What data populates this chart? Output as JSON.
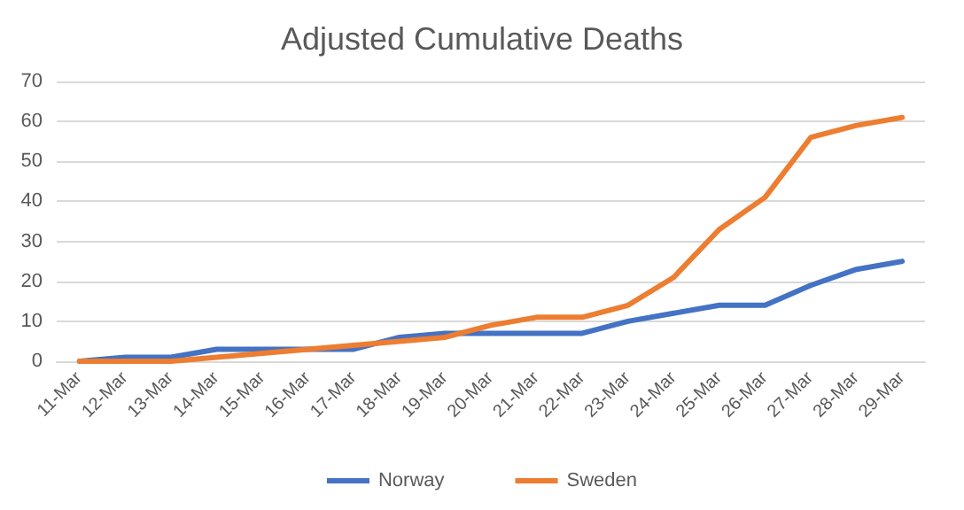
{
  "chart_data": {
    "type": "line",
    "title": "Adjusted Cumulative Deaths",
    "categories": [
      "11-Mar",
      "12-Mar",
      "13-Mar",
      "14-Mar",
      "15-Mar",
      "16-Mar",
      "17-Mar",
      "18-Mar",
      "19-Mar",
      "20-Mar",
      "21-Mar",
      "22-Mar",
      "23-Mar",
      "24-Mar",
      "25-Mar",
      "26-Mar",
      "27-Mar",
      "28-Mar",
      "29-Mar"
    ],
    "series": [
      {
        "name": "Norway",
        "color": "#4472c4",
        "values": [
          0,
          1,
          1,
          3,
          3,
          3,
          3,
          6,
          7,
          7,
          7,
          7,
          10,
          12,
          14,
          14,
          19,
          23,
          25
        ]
      },
      {
        "name": "Sweden",
        "color": "#ed7d31",
        "values": [
          0,
          0,
          0,
          1,
          2,
          3,
          4,
          5,
          6,
          9,
          11,
          11,
          14,
          21,
          33,
          41,
          56,
          59,
          61
        ]
      }
    ],
    "ylim": [
      0,
      70
    ],
    "yticks": [
      0,
      10,
      20,
      30,
      40,
      50,
      60,
      70
    ],
    "grid": "y",
    "legend": "bottom",
    "marker": "none",
    "line_style": "solid"
  }
}
